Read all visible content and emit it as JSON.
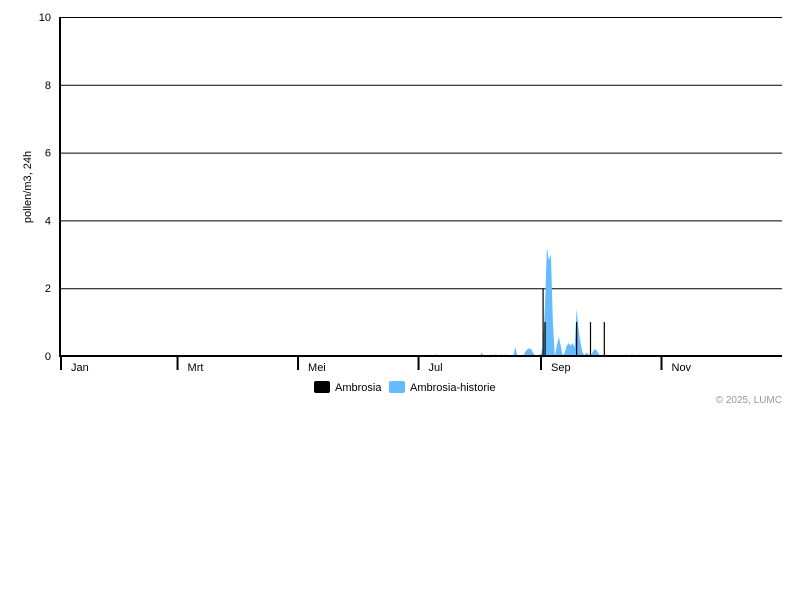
{
  "chart_data": {
    "type": "bar",
    "title": "",
    "ylabel": "pollen/m3, 24h",
    "xlabel": "",
    "ylim": [
      0,
      10
    ],
    "yticks": [
      0,
      2,
      4,
      6,
      8,
      10
    ],
    "grid": true,
    "xrange": [
      "2025-01-01",
      "2025-12-31"
    ],
    "month_ticks": [
      "2025-01-01",
      "2025-02-01",
      "2025-03-01",
      "2025-04-01",
      "2025-05-01",
      "2025-06-01",
      "2025-07-01",
      "2025-08-01",
      "2025-09-01",
      "2025-10-01",
      "2025-11-01",
      "2025-12-01"
    ],
    "month_labels": [
      {
        "date": "2025-01-01",
        "label": "Jan"
      },
      {
        "date": "2025-03-01",
        "label": "Mrt"
      },
      {
        "date": "2025-05-01",
        "label": "Mei"
      },
      {
        "date": "2025-07-01",
        "label": "Jul"
      },
      {
        "date": "2025-09-01",
        "label": "Sep"
      },
      {
        "date": "2025-11-01",
        "label": "Nov"
      }
    ],
    "legend_position": "bottom",
    "series": [
      {
        "name": "Ambrosia",
        "type": "bar",
        "color": "#000000",
        "points": [
          [
            "2025-09-02",
            2
          ],
          [
            "2025-09-03",
            1
          ],
          [
            "2025-09-19",
            1
          ],
          [
            "2025-09-26",
            1
          ],
          [
            "2025-10-03",
            1
          ]
        ]
      },
      {
        "name": "Ambrosia-historie",
        "type": "area",
        "color": "#66bbff",
        "points": [
          [
            "2025-07-04",
            0
          ],
          [
            "2025-07-05",
            0.05
          ],
          [
            "2025-07-06",
            0
          ],
          [
            "2025-07-09",
            0
          ],
          [
            "2025-07-10",
            0.05
          ],
          [
            "2025-07-11",
            0
          ],
          [
            "2025-08-01",
            0
          ],
          [
            "2025-08-02",
            0.1
          ],
          [
            "2025-08-03",
            0
          ],
          [
            "2025-08-06",
            0
          ],
          [
            "2025-08-07",
            0.05
          ],
          [
            "2025-08-08",
            0
          ],
          [
            "2025-08-09",
            0.05
          ],
          [
            "2025-08-10",
            0
          ],
          [
            "2025-08-11",
            0
          ],
          [
            "2025-08-12",
            0.05
          ],
          [
            "2025-08-13",
            0
          ],
          [
            "2025-08-14",
            0.05
          ],
          [
            "2025-08-15",
            0
          ],
          [
            "2025-08-18",
            0
          ],
          [
            "2025-08-19",
            0.27
          ],
          [
            "2025-08-20",
            0
          ],
          [
            "2025-08-23",
            0
          ],
          [
            "2025-08-24",
            0.12
          ],
          [
            "2025-08-25",
            0.2
          ],
          [
            "2025-08-26",
            0.23
          ],
          [
            "2025-08-27",
            0.2
          ],
          [
            "2025-08-28",
            0.1
          ],
          [
            "2025-08-29",
            0
          ],
          [
            "2025-09-01",
            0.05
          ],
          [
            "2025-09-02",
            0.3
          ],
          [
            "2025-09-03",
            1.5
          ],
          [
            "2025-09-04",
            3.2
          ],
          [
            "2025-09-05",
            2.83
          ],
          [
            "2025-09-06",
            3.0
          ],
          [
            "2025-09-07",
            1.0
          ],
          [
            "2025-09-08",
            0
          ],
          [
            "2025-09-09",
            0.3
          ],
          [
            "2025-09-10",
            0.57
          ],
          [
            "2025-09-11",
            0.3
          ],
          [
            "2025-09-12",
            0
          ],
          [
            "2025-09-13",
            0.1
          ],
          [
            "2025-09-14",
            0.3
          ],
          [
            "2025-09-15",
            0.38
          ],
          [
            "2025-09-16",
            0.3
          ],
          [
            "2025-09-17",
            0.38
          ],
          [
            "2025-09-18",
            0.25
          ],
          [
            "2025-09-19",
            1.39
          ],
          [
            "2025-09-20",
            0.8
          ],
          [
            "2025-09-21",
            0.4
          ],
          [
            "2025-09-22",
            0.1
          ],
          [
            "2025-09-23",
            0.02
          ],
          [
            "2025-09-24",
            0.1
          ],
          [
            "2025-09-25",
            0.05
          ],
          [
            "2025-09-26",
            0
          ],
          [
            "2025-09-27",
            0.1
          ],
          [
            "2025-09-28",
            0.2
          ],
          [
            "2025-09-29",
            0.18
          ],
          [
            "2025-09-30",
            0.08
          ],
          [
            "2025-10-01",
            0
          ],
          [
            "2025-10-03",
            0
          ],
          [
            "2025-10-04",
            0.05
          ],
          [
            "2025-10-05",
            0
          ],
          [
            "2025-10-13",
            0
          ],
          [
            "2025-10-14",
            0.05
          ],
          [
            "2025-10-15",
            0
          ],
          [
            "2025-10-16",
            0
          ],
          [
            "2025-10-17",
            0.05
          ],
          [
            "2025-10-18",
            0
          ],
          [
            "2025-10-20",
            0
          ],
          [
            "2025-10-21",
            0.05
          ],
          [
            "2025-10-22",
            0
          ]
        ]
      }
    ]
  },
  "footer": {
    "copyright": "© 2025, LUMC"
  }
}
